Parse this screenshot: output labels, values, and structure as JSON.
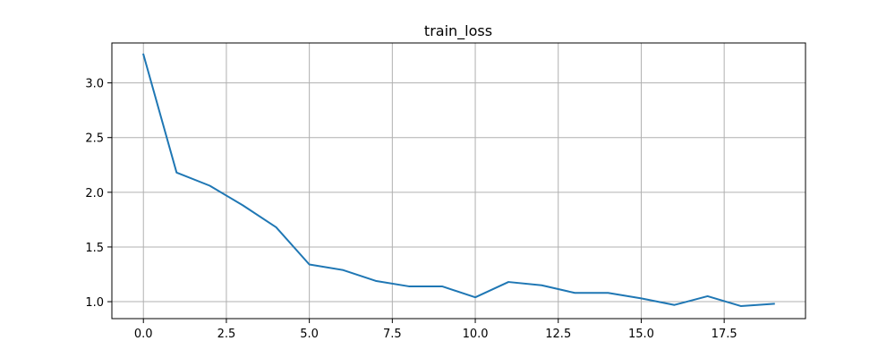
{
  "chart_data": {
    "type": "line",
    "title": "train_loss",
    "xlabel": "",
    "ylabel": "",
    "xlim": [
      -0.95,
      19.95
    ],
    "ylim": [
      0.845,
      3.365
    ],
    "grid": true,
    "line_color": "#1f77b4",
    "grid_color": "#b0b0b0",
    "x_ticks": [
      0.0,
      2.5,
      5.0,
      7.5,
      10.0,
      12.5,
      15.0,
      17.5
    ],
    "x_tick_labels": [
      "0.0",
      "2.5",
      "5.0",
      "7.5",
      "10.0",
      "12.5",
      "15.0",
      "17.5"
    ],
    "y_ticks": [
      1.0,
      1.5,
      2.0,
      2.5,
      3.0
    ],
    "y_tick_labels": [
      "1.0",
      "1.5",
      "2.0",
      "2.5",
      "3.0"
    ],
    "series": [
      {
        "x": [
          0,
          1,
          2,
          3,
          4,
          5,
          6,
          7,
          8,
          9,
          10,
          11,
          12,
          13,
          14,
          15,
          16,
          17,
          18,
          19
        ],
        "values": [
          3.26,
          2.18,
          2.06,
          1.88,
          1.68,
          1.34,
          1.29,
          1.19,
          1.14,
          1.14,
          1.04,
          1.18,
          1.15,
          1.08,
          1.08,
          1.03,
          0.97,
          1.05,
          0.96,
          0.98
        ]
      }
    ]
  }
}
